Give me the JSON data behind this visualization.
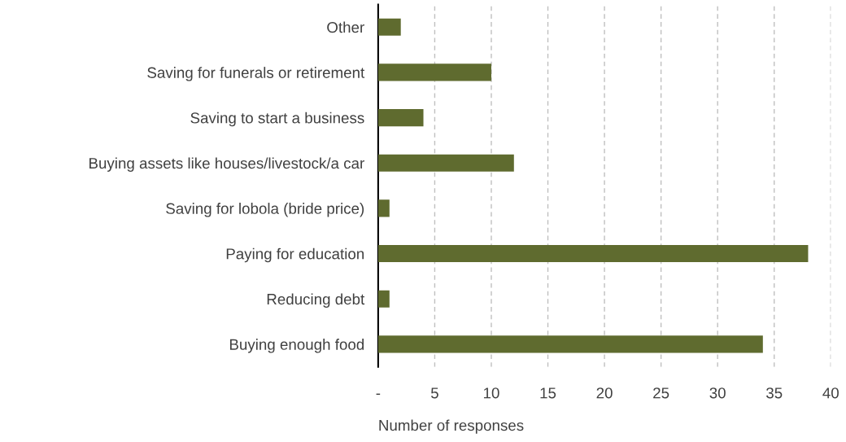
{
  "chart_data": {
    "type": "bar",
    "orientation": "horizontal",
    "categories": [
      "Other",
      "Saving for funerals or retirement",
      "Saving to start a business",
      "Buying assets like houses/livestock/a car",
      "Saving for lobola (bride price)",
      "Paying for education",
      "Reducing debt",
      "Buying enough food"
    ],
    "values": [
      2,
      10,
      4,
      12,
      1,
      38,
      1,
      34
    ],
    "color": "#5f6b2f",
    "xlabel": "Number of responses",
    "xlim": [
      0,
      40
    ],
    "xticks": [
      {
        "value": 0,
        "label": "-"
      },
      5,
      10,
      15,
      20,
      25,
      30,
      35,
      40
    ],
    "grid": "x",
    "legend": false
  }
}
